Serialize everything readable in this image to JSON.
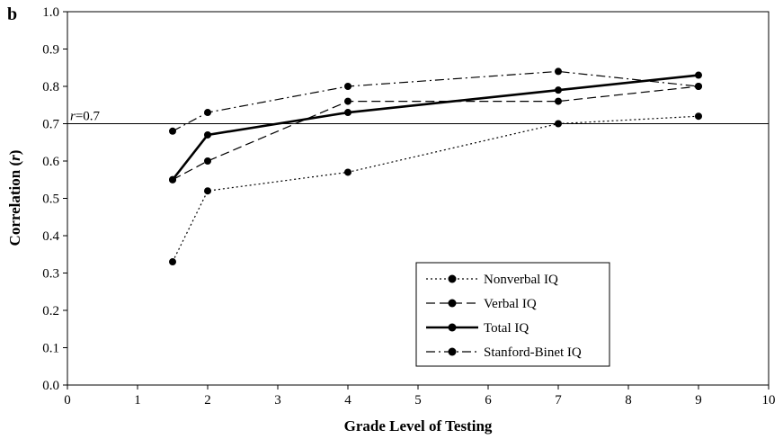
{
  "panel_label": "b",
  "reference_line": {
    "value": 0.7,
    "label_italic": "r",
    "label_rest": "=0.7"
  },
  "chart_data": {
    "type": "line",
    "title": "",
    "xlabel": "Grade Level of Testing",
    "ylabel_main": "Correlation (",
    "ylabel_italic": "r",
    "ylabel_end": ")",
    "xlim": [
      0,
      10
    ],
    "ylim": [
      0.0,
      1.0
    ],
    "x_ticks": [
      "0",
      "1",
      "2",
      "3",
      "4",
      "5",
      "6",
      "7",
      "8",
      "9",
      "10"
    ],
    "y_ticks": [
      "0.0",
      "0.1",
      "0.2",
      "0.3",
      "0.4",
      "0.5",
      "0.6",
      "0.7",
      "0.8",
      "0.9",
      "1.0"
    ],
    "grid": false,
    "legend_position": "bottom-right",
    "series": [
      {
        "name": "Nonverbal IQ",
        "style": "dotted",
        "x": [
          1.5,
          2,
          4,
          7,
          9
        ],
        "y": [
          0.33,
          0.52,
          0.57,
          0.7,
          0.72
        ]
      },
      {
        "name": "Verbal IQ",
        "style": "dashed",
        "x": [
          1.5,
          2,
          4,
          7,
          9
        ],
        "y": [
          0.55,
          0.6,
          0.76,
          0.76,
          0.8
        ]
      },
      {
        "name": "Total IQ",
        "style": "solid-bold",
        "x": [
          1.5,
          2,
          4,
          7,
          9
        ],
        "y": [
          0.55,
          0.67,
          0.73,
          0.79,
          0.83
        ]
      },
      {
        "name": "Stanford-Binet IQ",
        "style": "dashdot",
        "x": [
          1.5,
          2,
          4,
          7,
          9
        ],
        "y": [
          0.68,
          0.73,
          0.8,
          0.84,
          0.8
        ]
      }
    ]
  }
}
